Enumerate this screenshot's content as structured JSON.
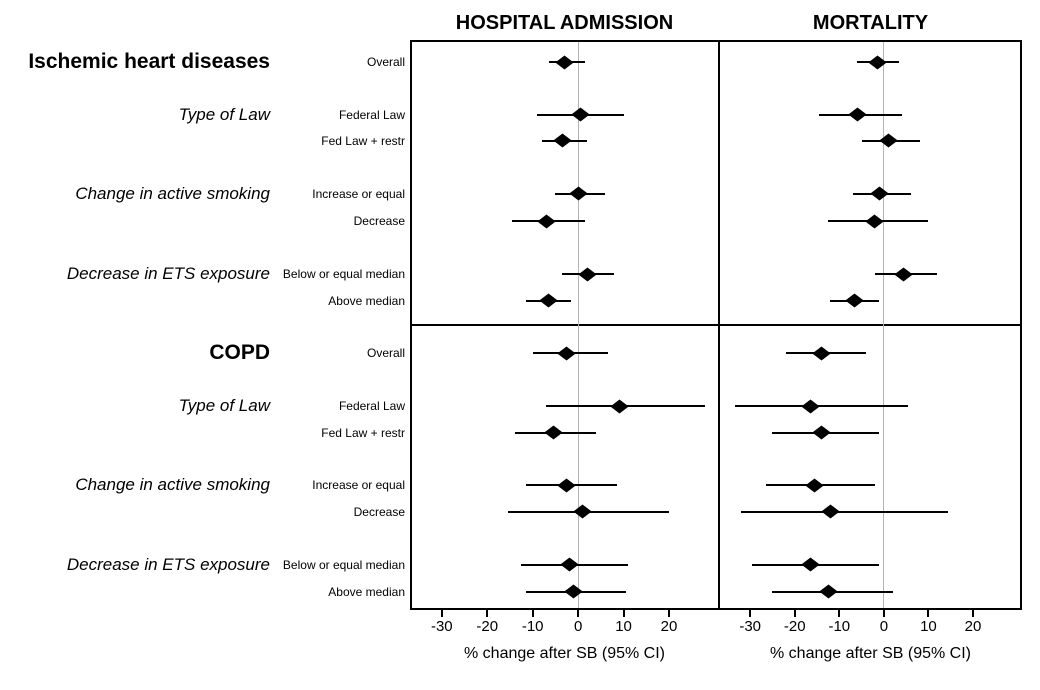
{
  "chart_data": {
    "type": "forest",
    "panels": [
      "HOSPITAL ADMISSION",
      "MORTALITY"
    ],
    "panel_keys": [
      "hospital_admission",
      "mortality"
    ],
    "xlabel": "% change after SB (95% CI)",
    "x_ticks": [
      -30,
      -20,
      -10,
      0,
      10,
      20
    ],
    "xlim": [
      -37,
      31
    ],
    "reference_line": 0,
    "grid": "zero-reference-only",
    "colors": {
      "marker": "#000000",
      "ci_line": "#000000",
      "reference_line": "#b4b4b4",
      "border": "#000000"
    },
    "sections": [
      {
        "title": "Ischemic heart diseases",
        "rows": [
          {
            "label": "Overall",
            "group": null,
            "hospital_admission": {
              "est": -3,
              "lo": -6.5,
              "hi": 1.5
            },
            "mortality": {
              "est": -1.5,
              "lo": -6,
              "hi": 3.5
            }
          },
          {
            "label": "Federal Law",
            "group": "Type of Law",
            "hospital_admission": {
              "est": 0.5,
              "lo": -9,
              "hi": 10
            },
            "mortality": {
              "est": -6,
              "lo": -14.5,
              "hi": 4
            }
          },
          {
            "label": "Fed Law + restr",
            "group": null,
            "hospital_admission": {
              "est": -3.5,
              "lo": -8,
              "hi": 2
            },
            "mortality": {
              "est": 1,
              "lo": -5,
              "hi": 8
            }
          },
          {
            "label": "Increase or equal",
            "group": "Change in active smoking",
            "hospital_admission": {
              "est": 0,
              "lo": -5,
              "hi": 6
            },
            "mortality": {
              "est": -1,
              "lo": -7,
              "hi": 6
            }
          },
          {
            "label": "Decrease",
            "group": null,
            "hospital_admission": {
              "est": -7,
              "lo": -14.5,
              "hi": 1.5
            },
            "mortality": {
              "est": -2,
              "lo": -12.5,
              "hi": 10
            }
          },
          {
            "label": "Below or equal median",
            "group": "Decrease in ETS exposure",
            "hospital_admission": {
              "est": 2,
              "lo": -3.5,
              "hi": 8
            },
            "mortality": {
              "est": 4.5,
              "lo": -2,
              "hi": 12
            }
          },
          {
            "label": "Above median",
            "group": null,
            "hospital_admission": {
              "est": -6.5,
              "lo": -11.5,
              "hi": -1.5
            },
            "mortality": {
              "est": -6.5,
              "lo": -12,
              "hi": -1
            }
          }
        ]
      },
      {
        "title": "COPD",
        "rows": [
          {
            "label": "Overall",
            "group": null,
            "hospital_admission": {
              "est": -2.5,
              "lo": -10,
              "hi": 6.5
            },
            "mortality": {
              "est": -14,
              "lo": -22,
              "hi": -4
            }
          },
          {
            "label": "Federal Law",
            "group": "Type of Law",
            "hospital_admission": {
              "est": 9,
              "lo": -7,
              "hi": 28
            },
            "mortality": {
              "est": -16.5,
              "lo": -33.5,
              "hi": 5.5
            }
          },
          {
            "label": "Fed Law + restr",
            "group": null,
            "hospital_admission": {
              "est": -5.5,
              "lo": -14,
              "hi": 4
            },
            "mortality": {
              "est": -14,
              "lo": -25,
              "hi": -1
            }
          },
          {
            "label": "Increase or equal",
            "group": "Change in active smoking",
            "hospital_admission": {
              "est": -2.5,
              "lo": -11.5,
              "hi": 8.5
            },
            "mortality": {
              "est": -15.5,
              "lo": -26.5,
              "hi": -2
            }
          },
          {
            "label": "Decrease",
            "group": null,
            "hospital_admission": {
              "est": 1,
              "lo": -15.5,
              "hi": 20
            },
            "mortality": {
              "est": -12,
              "lo": -32,
              "hi": 14.5
            }
          },
          {
            "label": "Below or equal median",
            "group": "Decrease in ETS exposure",
            "hospital_admission": {
              "est": -2,
              "lo": -12.5,
              "hi": 11
            },
            "mortality": {
              "est": -16.5,
              "lo": -29.5,
              "hi": -1
            }
          },
          {
            "label": "Above median",
            "group": null,
            "hospital_admission": {
              "est": -1,
              "lo": -11.5,
              "hi": 10.5
            },
            "mortality": {
              "est": -12.5,
              "lo": -25,
              "hi": 2
            }
          }
        ]
      }
    ]
  }
}
